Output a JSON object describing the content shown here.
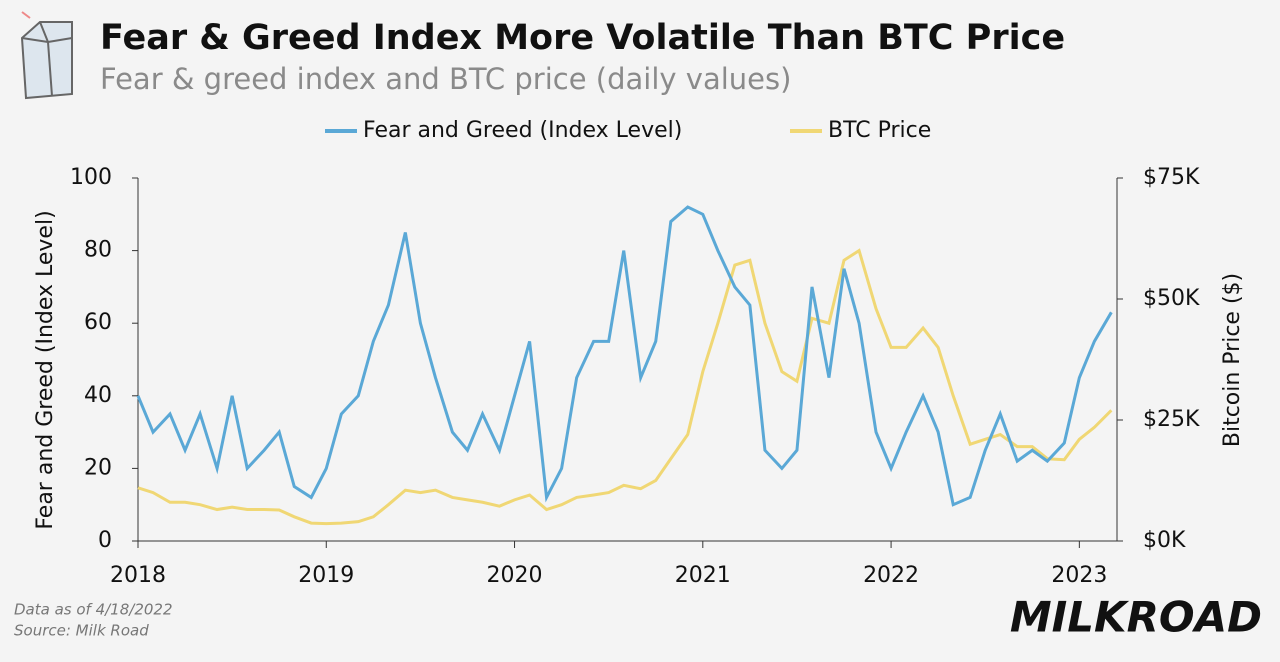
{
  "chart_data": {
    "type": "line",
    "title": "Fear & Greed Index More Volatile Than BTC Price",
    "subtitle": "Fear & greed index and BTC price (daily values)",
    "y_label": "Fear and Greed (Index Level)",
    "y2_label": "Bitcoin Price ($)",
    "notes": [
      "Data as of 4/18/2022",
      "Source: Milk Road"
    ],
    "brand": "MILKROAD",
    "x": [
      2018,
      2018.08,
      2018.17,
      2018.25,
      2018.33,
      2018.42,
      2018.5,
      2018.58,
      2018.67,
      2018.75,
      2018.83,
      2018.92,
      2019,
      2019.08,
      2019.17,
      2019.25,
      2019.33,
      2019.42,
      2019.5,
      2019.58,
      2019.67,
      2019.75,
      2019.83,
      2019.92,
      2020,
      2020.08,
      2020.17,
      2020.25,
      2020.33,
      2020.42,
      2020.5,
      2020.58,
      2020.67,
      2020.75,
      2020.83,
      2020.92,
      2021,
      2021.08,
      2021.17,
      2021.25,
      2021.33,
      2021.42,
      2021.5,
      2021.58,
      2021.67,
      2021.75,
      2021.83,
      2021.92,
      2022,
      2022.08,
      2022.17,
      2022.25,
      2022.33,
      2022.42,
      2022.5,
      2022.58,
      2022.67,
      2022.75,
      2022.83,
      2022.92,
      2023,
      2023.08,
      2023.17
    ],
    "series": [
      {
        "name": "Fear and Greed (Index Level)",
        "color": "#5aa8d6",
        "axis": "y",
        "values": [
          40,
          30,
          35,
          25,
          35,
          20,
          40,
          20,
          25,
          30,
          15,
          12,
          20,
          35,
          40,
          55,
          65,
          85,
          60,
          45,
          30,
          25,
          35,
          25,
          40,
          55,
          12,
          20,
          45,
          55,
          55,
          80,
          45,
          55,
          88,
          92,
          90,
          80,
          70,
          65,
          25,
          20,
          25,
          70,
          45,
          75,
          60,
          30,
          20,
          30,
          40,
          30,
          10,
          12,
          25,
          35,
          22,
          25,
          22,
          27,
          45,
          55,
          63
        ]
      },
      {
        "name": "BTC Price",
        "color": "#f0d774",
        "axis": "y2",
        "values": [
          11000,
          10000,
          8000,
          8000,
          7500,
          6500,
          7000,
          6500,
          6500,
          6400,
          5000,
          3700,
          3600,
          3700,
          4000,
          5000,
          7500,
          10500,
          10000,
          10500,
          9000,
          8500,
          8000,
          7200,
          8500,
          9500,
          6500,
          7500,
          9000,
          9500,
          10000,
          11500,
          10800,
          12500,
          17000,
          22000,
          35000,
          45000,
          57000,
          58000,
          45000,
          35000,
          33000,
          46000,
          45000,
          58000,
          60000,
          48000,
          40000,
          40000,
          44000,
          40000,
          30000,
          20000,
          21000,
          22000,
          19500,
          19500,
          17000,
          16800,
          21000,
          23500,
          27000
        ]
      }
    ],
    "xlim": [
      2018,
      2023.2
    ],
    "xticks": [
      2018,
      2019,
      2020,
      2021,
      2022,
      2023
    ],
    "ylim": [
      0,
      100
    ],
    "yticks": [
      0,
      20,
      40,
      60,
      80,
      100
    ],
    "y2lim": [
      0,
      75000
    ],
    "y2ticks": [
      {
        "value": 0,
        "label": "$0K"
      },
      {
        "value": 25000,
        "label": "$25K"
      },
      {
        "value": 50000,
        "label": "$50K"
      },
      {
        "value": 75000,
        "label": "$75K"
      }
    ]
  }
}
